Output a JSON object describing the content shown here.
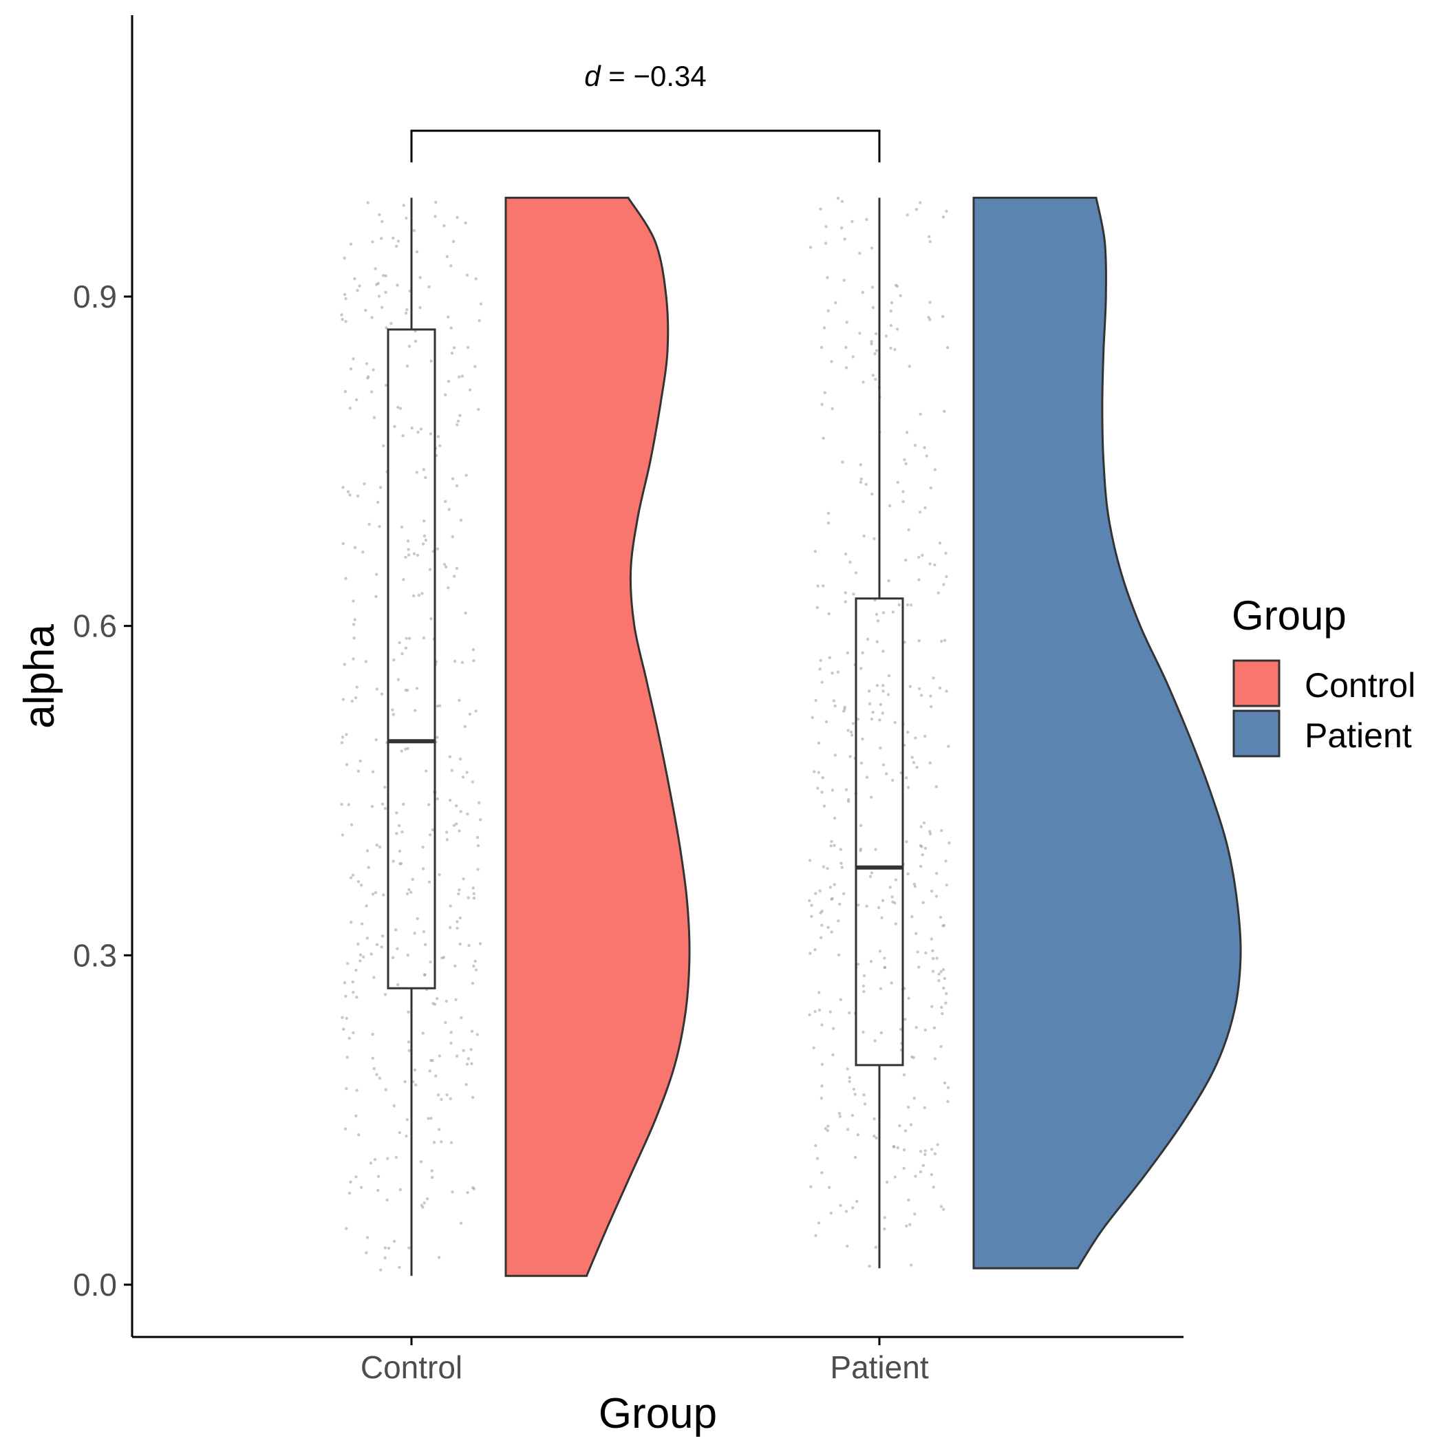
{
  "chart_data": {
    "type": "raincloud",
    "xlabel": "Group",
    "ylabel": "alpha",
    "categories": [
      "Control",
      "Patient"
    ],
    "ylim": [
      -0.04,
      1.12
    ],
    "yticks": [
      0.0,
      0.3,
      0.6,
      0.9
    ],
    "ytick_labels": [
      "0.0",
      "0.3",
      "0.6",
      "0.9"
    ],
    "grid": false,
    "legend": {
      "title": "Group",
      "position": "right",
      "entries": [
        {
          "label": "Control",
          "color": "#F8766D"
        },
        {
          "label": "Patient",
          "color": "#5B84B1"
        }
      ]
    },
    "annotation": {
      "prefix": "d",
      "text": " = −0.34",
      "between": [
        "Control",
        "Patient"
      ]
    },
    "series": [
      {
        "name": "Control",
        "color": "#F8766D",
        "box": {
          "whisker_low": 0.008,
          "q1": 0.27,
          "median": 0.495,
          "q3": 0.87,
          "whisker_high": 0.99
        },
        "density": {
          "y": [
            0.008,
            0.05,
            0.1,
            0.15,
            0.2,
            0.25,
            0.3,
            0.35,
            0.4,
            0.45,
            0.5,
            0.55,
            0.6,
            0.65,
            0.7,
            0.75,
            0.8,
            0.85,
            0.9,
            0.95,
            0.99
          ],
          "width": [
            0.66,
            0.82,
            1.02,
            1.22,
            1.38,
            1.47,
            1.5,
            1.48,
            1.42,
            1.34,
            1.25,
            1.15,
            1.05,
            1.02,
            1.08,
            1.18,
            1.26,
            1.32,
            1.31,
            1.22,
            1.0
          ]
        },
        "points_count": 420
      },
      {
        "name": "Patient",
        "color": "#5B84B1",
        "box": {
          "whisker_low": 0.015,
          "q1": 0.2,
          "median": 0.38,
          "q3": 0.625,
          "whisker_high": 0.99
        },
        "density": {
          "y": [
            0.015,
            0.05,
            0.1,
            0.15,
            0.2,
            0.25,
            0.3,
            0.35,
            0.4,
            0.45,
            0.5,
            0.55,
            0.6,
            0.65,
            0.7,
            0.75,
            0.8,
            0.85,
            0.9,
            0.95,
            0.99
          ],
          "width": [
            0.85,
            1.05,
            1.4,
            1.72,
            1.98,
            2.13,
            2.18,
            2.15,
            2.07,
            1.93,
            1.76,
            1.57,
            1.36,
            1.2,
            1.1,
            1.06,
            1.05,
            1.06,
            1.08,
            1.07,
            1.0
          ]
        },
        "points_count": 420
      }
    ]
  }
}
